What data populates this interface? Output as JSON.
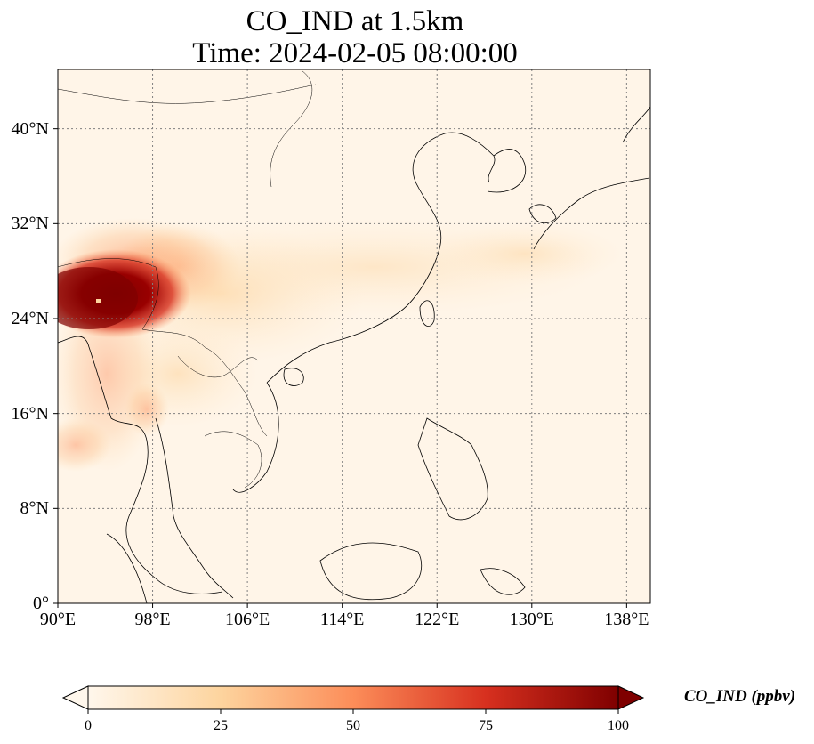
{
  "title": {
    "line1": "CO_IND at 1.5km",
    "line2": "Time: 2024-02-05 08:00:00"
  },
  "map": {
    "lon_range": [
      90,
      140
    ],
    "lat_range": [
      0,
      45
    ],
    "lon_ticks": [
      "90°E",
      "98°E",
      "106°E",
      "114°E",
      "122°E",
      "130°E",
      "138°E"
    ],
    "lon_values": [
      90,
      98,
      106,
      114,
      122,
      130,
      138
    ],
    "lat_ticks": [
      "0°",
      "8°N",
      "16°N",
      "24°N",
      "32°N",
      "40°N"
    ],
    "lat_values": [
      0,
      8,
      16,
      24,
      32,
      40
    ],
    "colormap": "OrRd",
    "colors": [
      "#fff7ec",
      "#fdd49e",
      "#fc8d59",
      "#d7301f",
      "#7f0000"
    ]
  },
  "colorbar": {
    "label": "CO_IND (ppbv)",
    "ticks": [
      "0",
      "25",
      "50",
      "75",
      "100"
    ],
    "tick_values": [
      0,
      25,
      50,
      75,
      100
    ],
    "range": [
      0,
      100
    ],
    "extend": "both"
  }
}
